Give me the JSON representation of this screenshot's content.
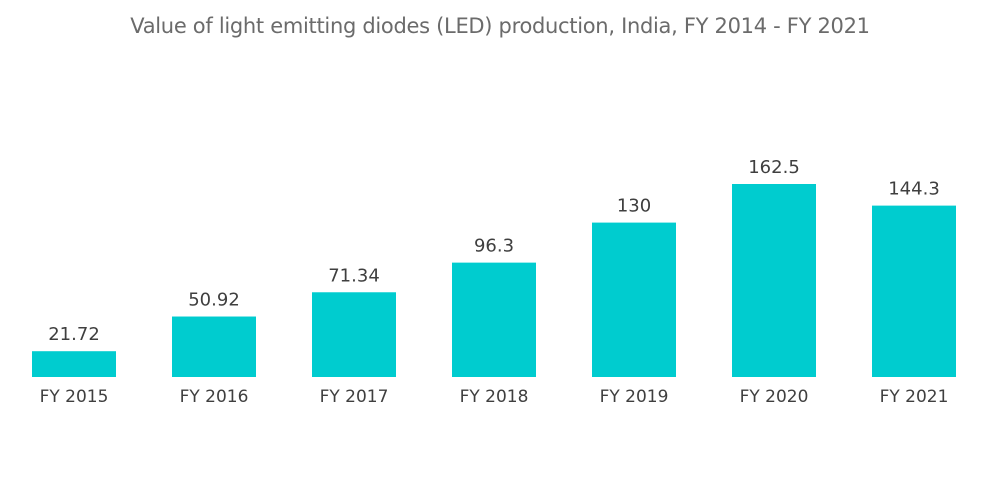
{
  "chart_data": {
    "type": "bar",
    "title": "Value of light emitting diodes (LED) production, India, FY 2014 - FY 2021",
    "categories": [
      "FY 2015",
      "FY 2016",
      "FY 2017",
      "FY 2018",
      "FY 2019",
      "FY 2020",
      "FY 2021"
    ],
    "values": [
      21.72,
      50.92,
      71.34,
      96.3,
      130,
      162.5,
      144.3
    ],
    "value_labels": [
      "21.72",
      "50.92",
      "71.34",
      "96.3",
      "130",
      "162.5",
      "144.3"
    ],
    "xlabel": "",
    "ylabel": "",
    "ylim": [
      0,
      162.5
    ],
    "grid": false,
    "legend": "none",
    "bar_color": "#00cccf"
  }
}
